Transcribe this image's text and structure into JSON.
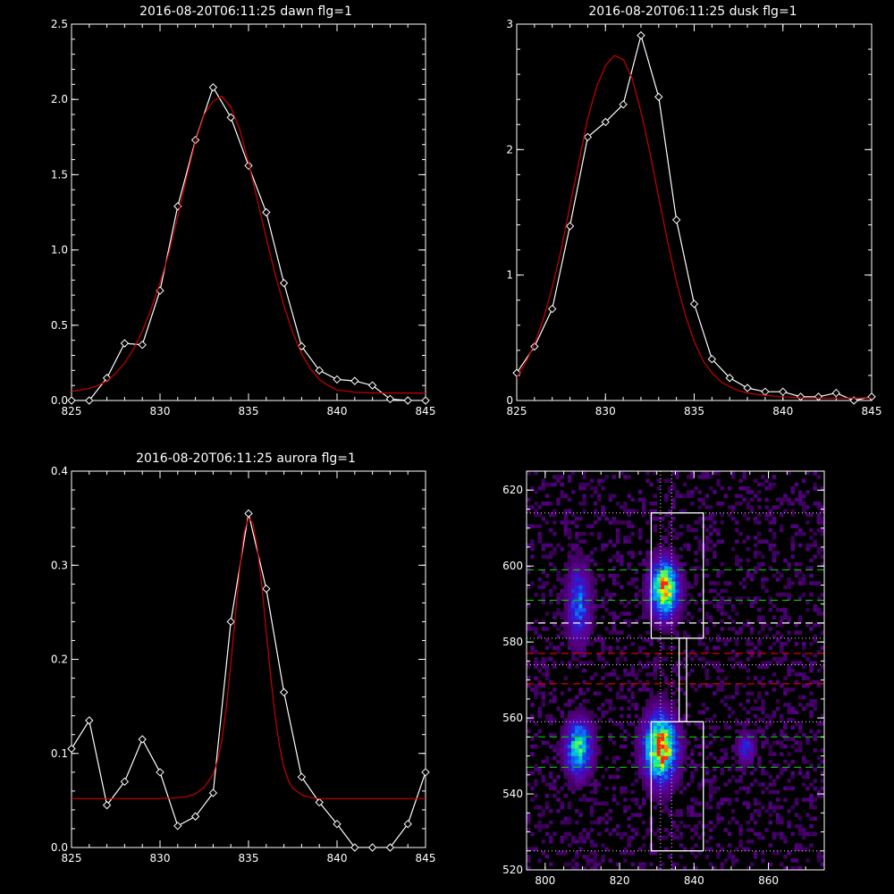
{
  "chart_data": [
    {
      "type": "line",
      "title": "2016-08-20T06:11:25 dawn flg=1",
      "xlim": [
        825,
        845
      ],
      "ylim": [
        0,
        2.5
      ],
      "xticks": [
        "825",
        "830",
        "835",
        "840",
        "845"
      ],
      "yticks": [
        "0.0",
        "0.5",
        "1.0",
        "1.5",
        "2.0",
        "2.5"
      ],
      "series": [
        {
          "color": "#ffffff",
          "markers": "diamond",
          "x": [
            825,
            826,
            827,
            828,
            829,
            830,
            831,
            832,
            833,
            834,
            835,
            836,
            837,
            838,
            839,
            840,
            841,
            842,
            843,
            844,
            845
          ],
          "y": [
            0.0,
            0.0,
            0.15,
            0.38,
            0.37,
            0.73,
            1.29,
            1.73,
            2.08,
            1.88,
            1.56,
            1.25,
            0.78,
            0.36,
            0.2,
            0.14,
            0.13,
            0.1,
            0.01,
            0.0,
            0.0
          ]
        },
        {
          "color": "#cc0000",
          "markers": "none",
          "x": [
            825,
            825.5,
            826,
            826.5,
            827,
            827.5,
            828,
            828.5,
            829,
            829.5,
            830,
            830.5,
            831,
            831.5,
            832,
            832.5,
            833,
            833.5,
            834,
            834.5,
            835,
            835.5,
            836,
            836.5,
            837,
            837.5,
            838,
            838.5,
            839,
            839.5,
            840,
            841,
            842,
            843,
            844,
            845
          ],
          "y": [
            0.06,
            0.07,
            0.08,
            0.1,
            0.13,
            0.18,
            0.25,
            0.34,
            0.46,
            0.61,
            0.78,
            0.98,
            1.22,
            1.48,
            1.72,
            1.9,
            1.99,
            2.02,
            1.95,
            1.8,
            1.58,
            1.33,
            1.08,
            0.84,
            0.63,
            0.45,
            0.31,
            0.21,
            0.14,
            0.1,
            0.07,
            0.055,
            0.05,
            0.05,
            0.05,
            0.05
          ]
        }
      ]
    },
    {
      "type": "line",
      "title": "2016-08-20T06:11:25 dusk flg=1",
      "xlim": [
        825,
        845
      ],
      "ylim": [
        0,
        3
      ],
      "xticks": [
        "825",
        "830",
        "835",
        "840",
        "845"
      ],
      "yticks": [
        "0",
        "1",
        "2",
        "3"
      ],
      "series": [
        {
          "color": "#ffffff",
          "markers": "diamond",
          "x": [
            825,
            826,
            827,
            828,
            829,
            830,
            831,
            832,
            833,
            834,
            835,
            836,
            837,
            838,
            839,
            840,
            841,
            842,
            843,
            844,
            845
          ],
          "y": [
            0.22,
            0.43,
            0.73,
            1.39,
            2.1,
            2.22,
            2.36,
            2.91,
            2.42,
            1.44,
            0.77,
            0.33,
            0.18,
            0.1,
            0.07,
            0.07,
            0.03,
            0.03,
            0.06,
            0.0,
            0.03
          ]
        },
        {
          "color": "#cc0000",
          "markers": "none",
          "x": [
            825,
            825.5,
            826,
            826.5,
            827,
            827.5,
            828,
            828.5,
            829,
            829.5,
            830,
            830.5,
            831,
            831.5,
            832,
            832.5,
            833,
            833.5,
            834,
            834.5,
            835,
            835.5,
            836,
            836.5,
            837,
            837.5,
            838,
            839,
            840,
            841,
            842,
            843,
            844,
            845
          ],
          "y": [
            0.18,
            0.3,
            0.45,
            0.65,
            0.9,
            1.2,
            1.55,
            1.9,
            2.25,
            2.5,
            2.67,
            2.75,
            2.72,
            2.57,
            2.3,
            1.98,
            1.62,
            1.27,
            0.95,
            0.68,
            0.47,
            0.32,
            0.22,
            0.15,
            0.11,
            0.08,
            0.06,
            0.04,
            0.03,
            0.02,
            0.02,
            0.02,
            0.02,
            0.02
          ]
        }
      ]
    },
    {
      "type": "line",
      "title": "2016-08-20T06:11:25 aurora flg=1",
      "xlim": [
        825,
        845
      ],
      "ylim": [
        0,
        0.4
      ],
      "xticks": [
        "825",
        "830",
        "835",
        "840",
        "845"
      ],
      "yticks": [
        "0.0",
        "0.1",
        "0.2",
        "0.3",
        "0.4"
      ],
      "series": [
        {
          "color": "#ffffff",
          "markers": "diamond",
          "x": [
            825,
            826,
            827,
            828,
            829,
            830,
            831,
            832,
            833,
            834,
            835,
            836,
            837,
            838,
            839,
            840,
            841,
            842,
            843,
            844,
            845
          ],
          "y": [
            0.105,
            0.135,
            0.045,
            0.07,
            0.115,
            0.08,
            0.023,
            0.033,
            0.058,
            0.24,
            0.355,
            0.275,
            0.165,
            0.075,
            0.048,
            0.025,
            0.0,
            0.0,
            0.0,
            0.025,
            0.08
          ]
        },
        {
          "color": "#cc0000",
          "markers": "none",
          "x": [
            825,
            826,
            827,
            828,
            829,
            830,
            831,
            831.5,
            832,
            832.5,
            833,
            833.25,
            833.5,
            833.75,
            834,
            834.25,
            834.5,
            834.75,
            835,
            835.25,
            835.5,
            835.75,
            836,
            836.25,
            836.5,
            836.75,
            837,
            837.25,
            837.5,
            838,
            838.5,
            839,
            840,
            841,
            842,
            843,
            844,
            845
          ],
          "y": [
            0.052,
            0.052,
            0.052,
            0.052,
            0.052,
            0.052,
            0.053,
            0.054,
            0.057,
            0.064,
            0.078,
            0.092,
            0.115,
            0.15,
            0.195,
            0.245,
            0.295,
            0.335,
            0.35,
            0.345,
            0.318,
            0.278,
            0.23,
            0.182,
            0.14,
            0.108,
            0.085,
            0.071,
            0.063,
            0.056,
            0.053,
            0.052,
            0.052,
            0.052,
            0.052,
            0.052,
            0.052,
            0.052
          ]
        }
      ]
    },
    {
      "type": "heatmap",
      "xlim": [
        795,
        875
      ],
      "ylim": [
        520,
        625
      ],
      "xticks": [
        "800",
        "820",
        "840",
        "860"
      ],
      "yticks": [
        "520",
        "540",
        "560",
        "580",
        "600",
        "620"
      ],
      "blobs": [
        {
          "cx": 832,
          "cy": 594,
          "sx": 2.6,
          "sy": 5,
          "amp": 0.95
        },
        {
          "cx": 831,
          "cy": 552,
          "sx": 3,
          "sy": 6,
          "amp": 1.0
        },
        {
          "cx": 809,
          "cy": 552,
          "sx": 2.5,
          "sy": 5,
          "amp": 0.7
        },
        {
          "cx": 809,
          "cy": 590,
          "sx": 2.2,
          "sy": 7,
          "amp": 0.45
        },
        {
          "cx": 854,
          "cy": 552,
          "sx": 1.6,
          "sy": 3,
          "amp": 0.35
        }
      ],
      "boxes": [
        {
          "x0": 828.5,
          "x1": 842.5,
          "y0": 581,
          "y1": 614
        },
        {
          "x0": 828.5,
          "x1": 842.5,
          "y0": 525,
          "y1": 559
        }
      ],
      "connector": {
        "x0": 836,
        "x1": 838,
        "y0": 559,
        "y1": 581
      },
      "vlines_dotted": [
        831,
        834
      ],
      "hlines_dotted": [
        614,
        581,
        574,
        559,
        525
      ],
      "hlines_green_dashed": [
        599,
        591,
        555,
        547
      ],
      "hlines_white_dashed": [
        585
      ],
      "hlines_red_dashed": [
        577,
        569
      ]
    }
  ],
  "colors": {
    "observed": "#ffffff",
    "fit": "#cc0000",
    "band_green": "#00c800",
    "band_red": "#dd0000"
  }
}
